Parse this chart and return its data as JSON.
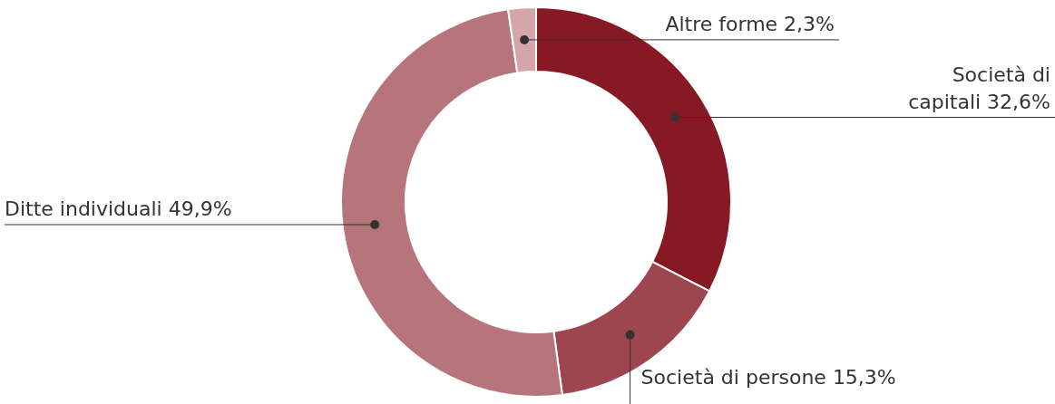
{
  "chart_data": {
    "type": "donut",
    "categories": [
      "Società di capitali",
      "Società di persone",
      "Ditte individuali",
      "Altre forme"
    ],
    "values": [
      32.6,
      15.3,
      49.9,
      2.3
    ],
    "value_labels": [
      "32,6%",
      "15,3%",
      "49,9%",
      "2,3%"
    ],
    "colors": [
      "#861924",
      "#9e4650",
      "#b5757a",
      "#d4a6aa"
    ],
    "legend": false
  }
}
